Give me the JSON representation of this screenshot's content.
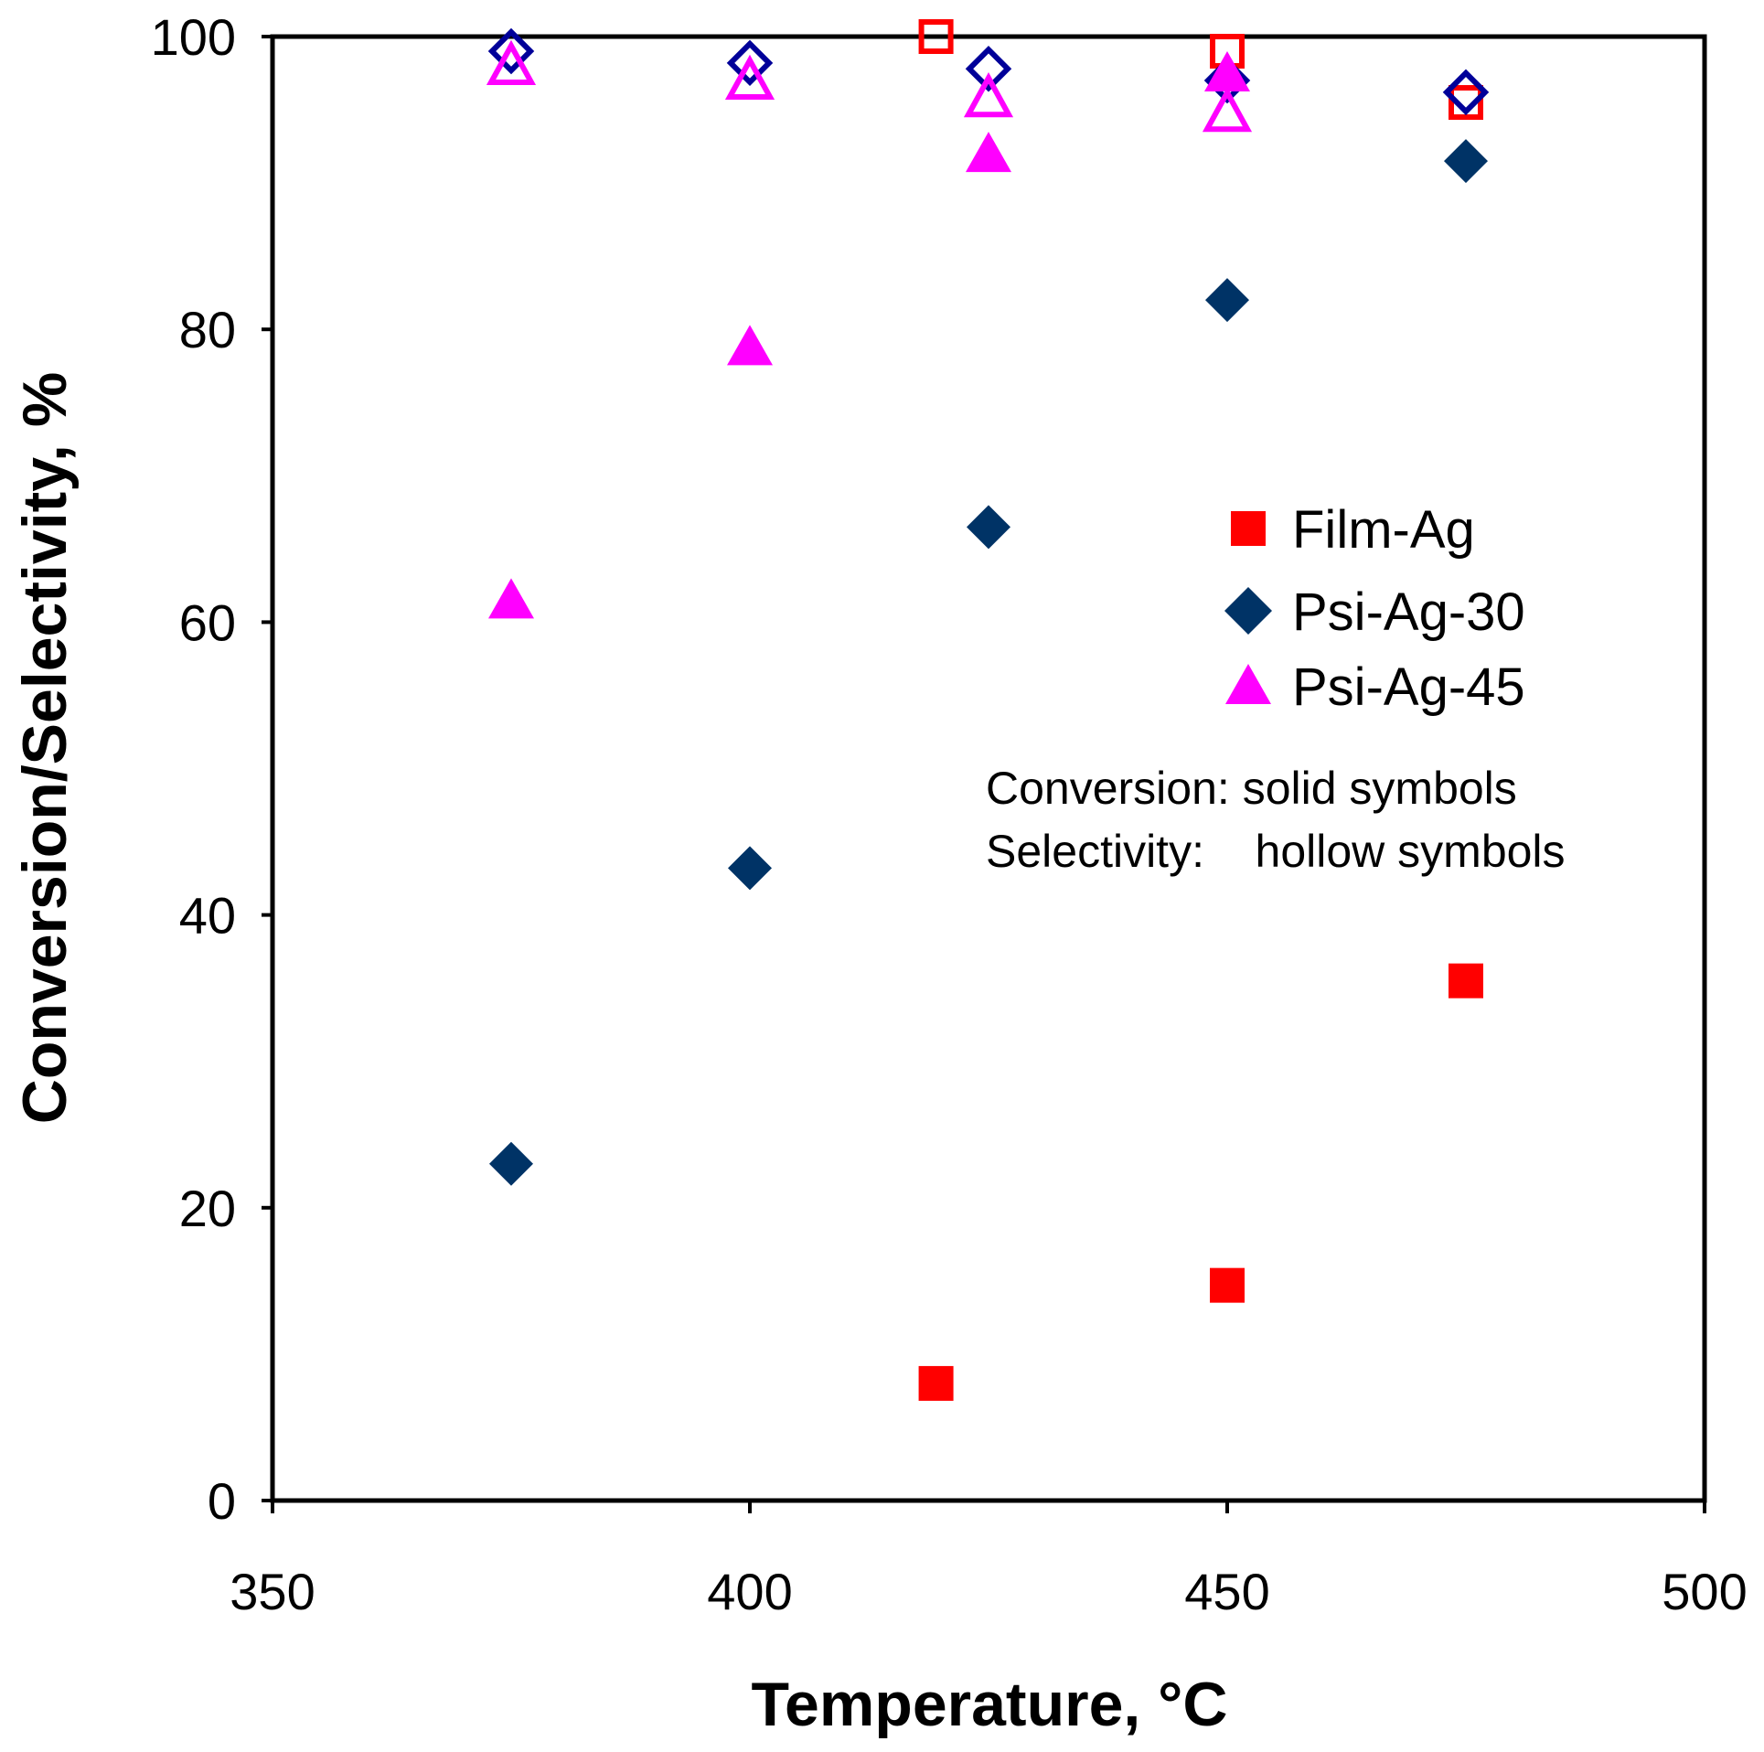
{
  "chart_data": {
    "type": "scatter",
    "title": "",
    "xlabel": "Temperature, °C",
    "ylabel": "Conversion/Selectivity, %",
    "xlim": [
      350,
      500
    ],
    "ylim": [
      0,
      100
    ],
    "x_ticks": [
      350,
      400,
      450,
      500
    ],
    "y_ticks": [
      0,
      20,
      40,
      60,
      80,
      100
    ],
    "x_tick_labels": [
      "350",
      "400",
      "450",
      "500"
    ],
    "y_tick_labels": [
      "0",
      "20",
      "40",
      "60",
      "80",
      "100"
    ],
    "grid": false,
    "legend_position": "center-right",
    "notes": [
      "Conversion: solid symbols",
      "Selectivity:    hollow symbols"
    ],
    "series": [
      {
        "name": "Film-Ag",
        "marker": "square",
        "color": "#FF0000",
        "conversion": [
          {
            "x": 419.5,
            "y": 8
          },
          {
            "x": 450,
            "y": 14.7
          },
          {
            "x": 475,
            "y": 35.5
          }
        ],
        "selectivity": [
          {
            "x": 419.5,
            "y": 100
          },
          {
            "x": 450,
            "y": 99
          },
          {
            "x": 475,
            "y": 95.5
          }
        ]
      },
      {
        "name": "Psi-Ag-30",
        "marker": "diamond",
        "color": "#003366",
        "hollow_color": "#000099",
        "conversion": [
          {
            "x": 375,
            "y": 23
          },
          {
            "x": 400,
            "y": 43.2
          },
          {
            "x": 425,
            "y": 66.5
          },
          {
            "x": 450,
            "y": 82
          },
          {
            "x": 475,
            "y": 91.5
          }
        ],
        "selectivity": [
          {
            "x": 375,
            "y": 99
          },
          {
            "x": 400,
            "y": 98.2
          },
          {
            "x": 425,
            "y": 97.8
          },
          {
            "x": 450,
            "y": 97
          },
          {
            "x": 475,
            "y": 96.2
          }
        ]
      },
      {
        "name": "Psi-Ag-45",
        "marker": "triangle",
        "color": "#FF00FF",
        "conversion": [
          {
            "x": 375,
            "y": 61.5
          },
          {
            "x": 400,
            "y": 78.8
          },
          {
            "x": 425,
            "y": 92
          },
          {
            "x": 450,
            "y": 97.5
          }
        ],
        "selectivity": [
          {
            "x": 375,
            "y": 98
          },
          {
            "x": 400,
            "y": 97
          },
          {
            "x": 425,
            "y": 95.8
          },
          {
            "x": 450,
            "y": 94.8
          }
        ]
      }
    ]
  }
}
